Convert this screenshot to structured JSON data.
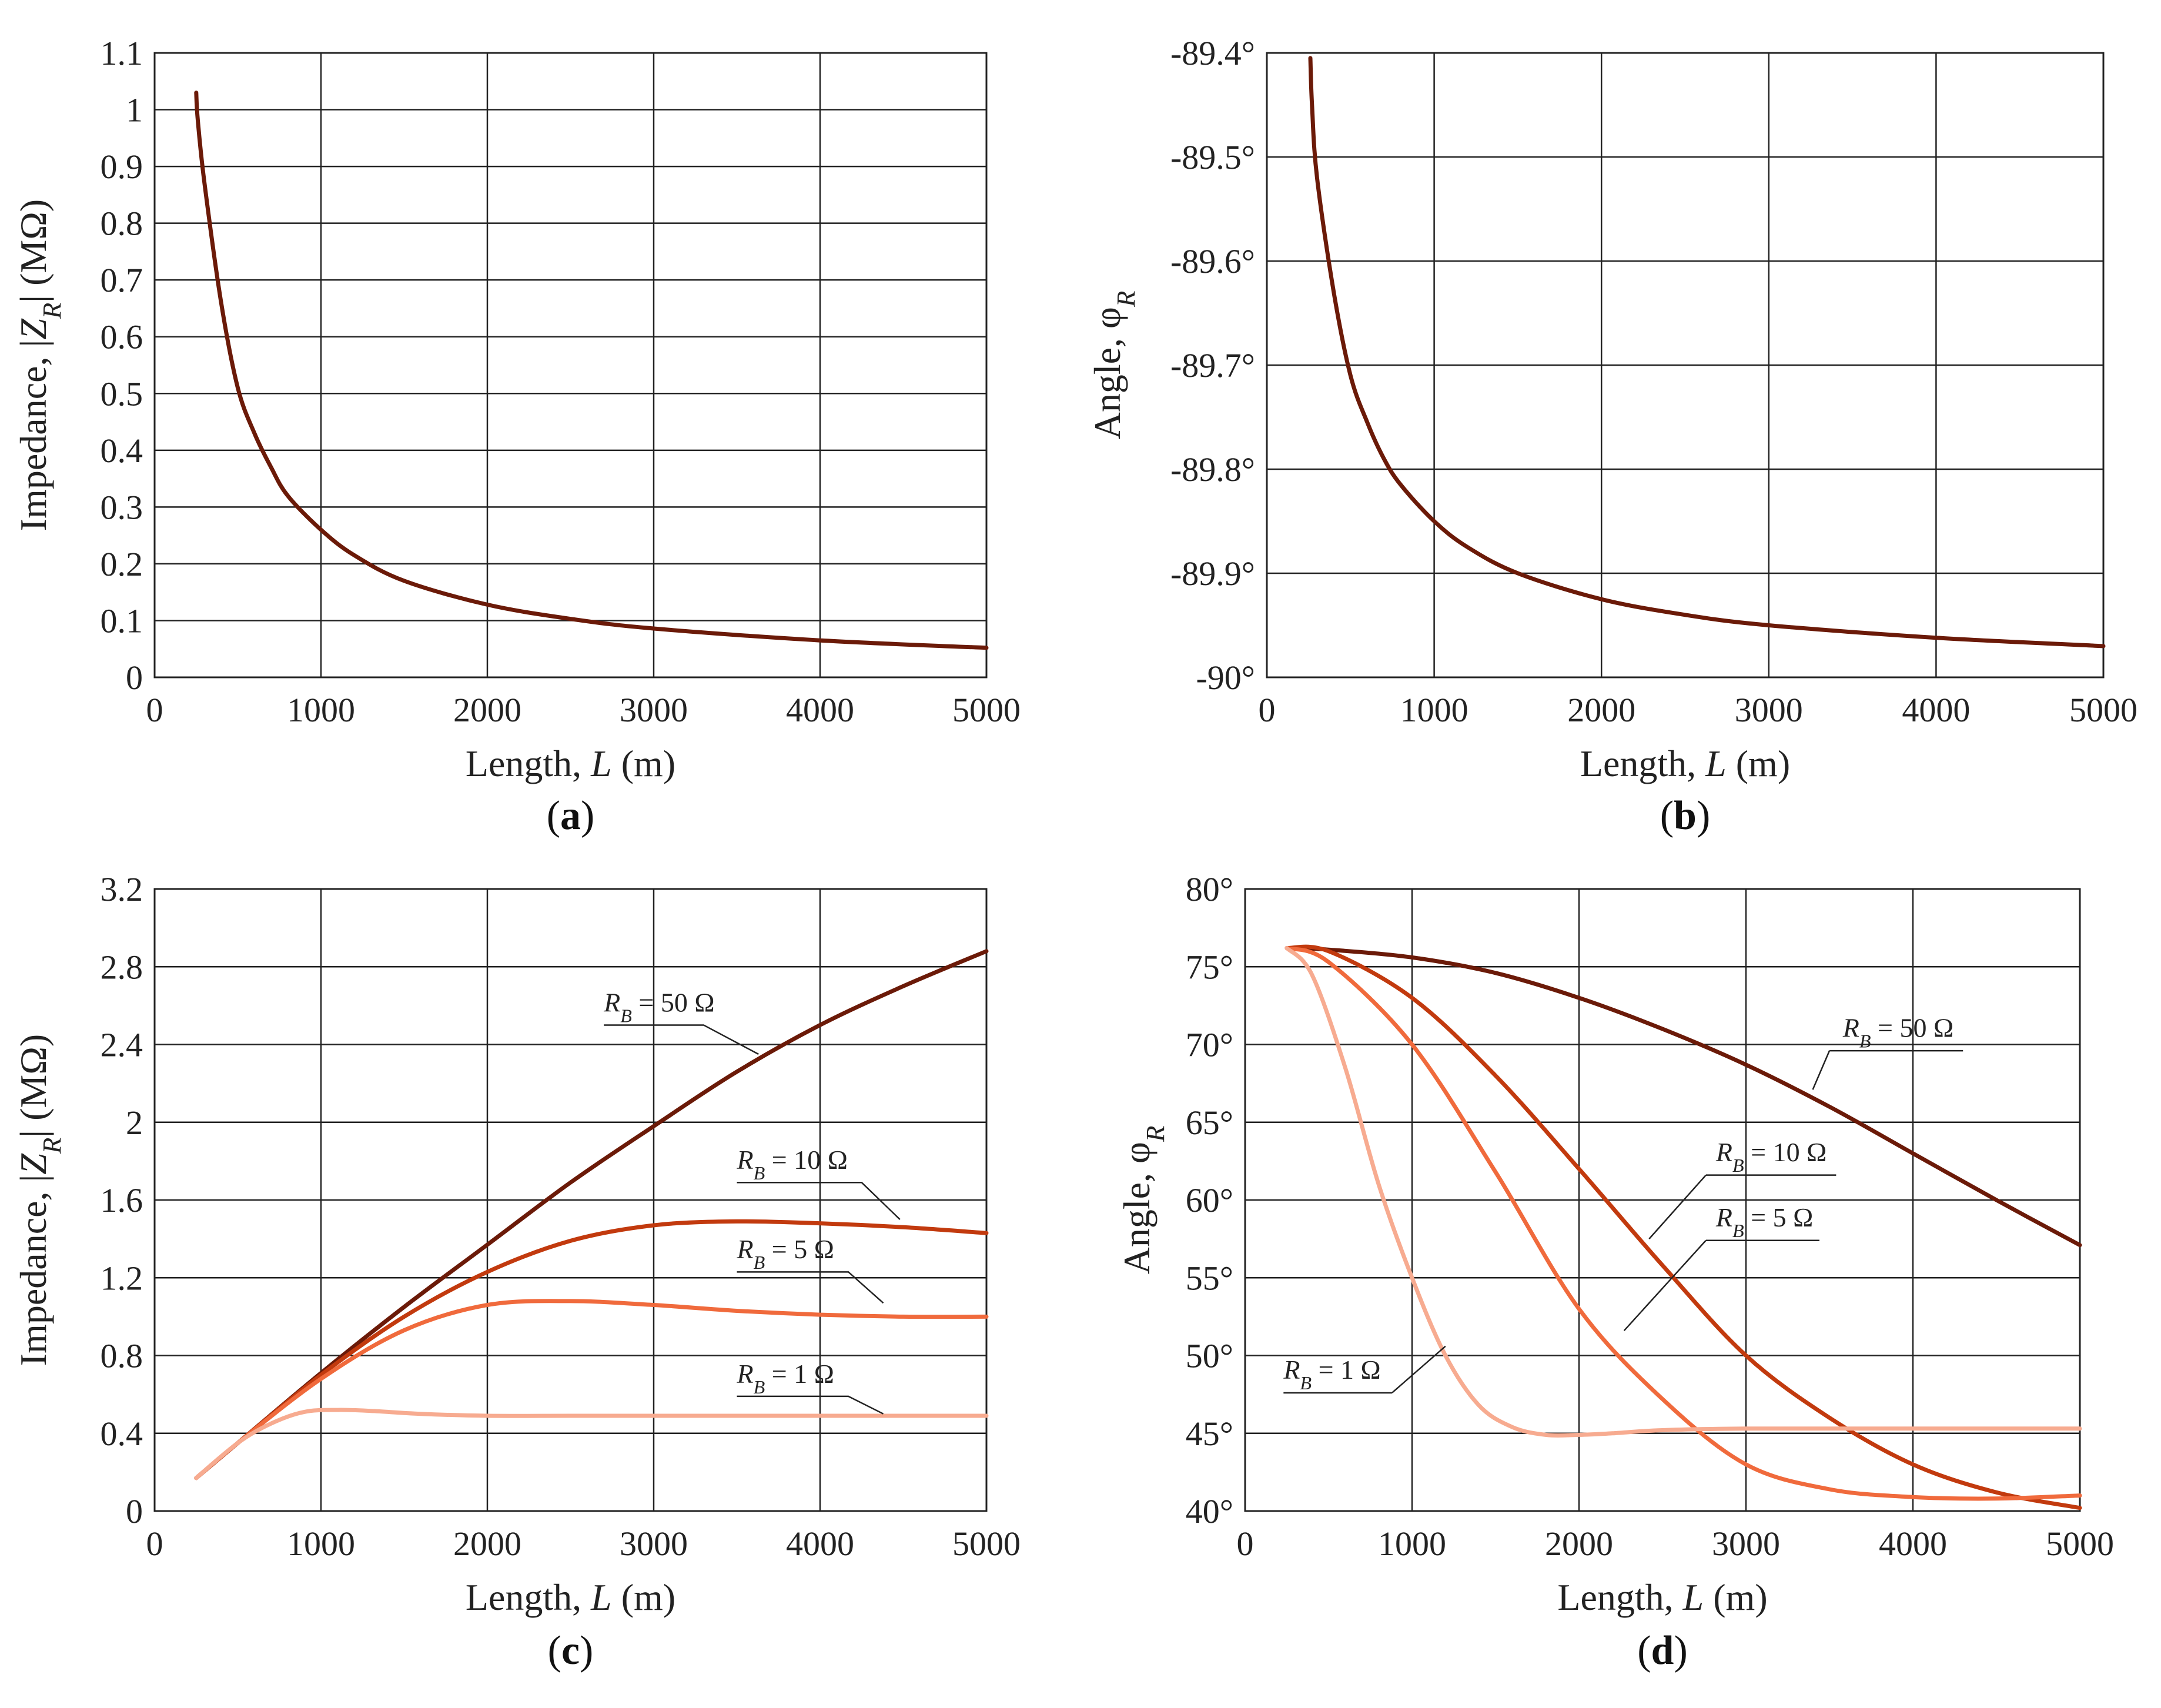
{
  "chart_data": [
    {
      "id": "a",
      "type": "line",
      "caption": "a",
      "xlabel": "Length, L (m)",
      "ylabel": "Impedance, |Z_R| (MΩ)",
      "xlim": [
        0,
        5000
      ],
      "ylim": [
        0,
        1.1
      ],
      "xticks": [
        0,
        1000,
        2000,
        3000,
        4000,
        5000
      ],
      "yticks": [
        0,
        0.1,
        0.2,
        0.3,
        0.4,
        0.5,
        0.6,
        0.7,
        0.8,
        0.9,
        1,
        1.1
      ],
      "ytick_labels": [
        "0",
        "0.1",
        "0.2",
        "0.3",
        "0.4",
        "0.5",
        "0.6",
        "0.7",
        "0.8",
        "0.9",
        "1",
        "1.1"
      ],
      "series": [
        {
          "name": "|Z_R|",
          "color": "#6b1a08",
          "x": [
            250,
            260,
            300,
            400,
            500,
            600,
            700,
            800,
            1000,
            1200,
            1500,
            2000,
            2500,
            3000,
            4000,
            5000
          ],
          "y": [
            1.03,
            0.98,
            0.87,
            0.66,
            0.51,
            0.43,
            0.37,
            0.32,
            0.26,
            0.215,
            0.17,
            0.128,
            0.103,
            0.086,
            0.065,
            0.052
          ]
        }
      ],
      "annotations": []
    },
    {
      "id": "b",
      "type": "line",
      "caption": "b",
      "xlabel": "Length, L (m)",
      "ylabel": "Angle, φ_R",
      "xlim": [
        0,
        5000
      ],
      "ylim": [
        -90,
        -89.4
      ],
      "xticks": [
        0,
        1000,
        2000,
        3000,
        4000,
        5000
      ],
      "yticks": [
        -90,
        -89.9,
        -89.8,
        -89.7,
        -89.6,
        -89.5,
        -89.4
      ],
      "ytick_labels": [
        "-90°",
        "-89.9°",
        "-89.8°",
        "-89.7°",
        "-89.6°",
        "-89.5°",
        "-89.4°"
      ],
      "series": [
        {
          "name": "φ_R",
          "color": "#6b1a08",
          "x": [
            260,
            270,
            300,
            400,
            500,
            600,
            700,
            800,
            1000,
            1200,
            1500,
            2000,
            2500,
            3000,
            4000,
            5000
          ],
          "y": [
            -89.405,
            -89.45,
            -89.52,
            -89.63,
            -89.71,
            -89.755,
            -89.79,
            -89.815,
            -89.85,
            -89.875,
            -89.9,
            -89.925,
            -89.94,
            -89.95,
            -89.962,
            -89.97
          ]
        }
      ],
      "annotations": []
    },
    {
      "id": "c",
      "type": "line",
      "caption": "c",
      "xlabel": "Length, L (m)",
      "ylabel": "Impedance, |Z_R| (MΩ)",
      "xlim": [
        0,
        5000
      ],
      "ylim": [
        0,
        3.2
      ],
      "xticks": [
        0,
        1000,
        2000,
        3000,
        4000,
        5000
      ],
      "yticks": [
        0,
        0.4,
        0.8,
        1.2,
        1.6,
        2,
        2.4,
        2.8,
        3.2
      ],
      "ytick_labels": [
        "0",
        "0.4",
        "0.8",
        "1.2",
        "1.6",
        "2",
        "2.4",
        "2.8",
        "3.2"
      ],
      "series": [
        {
          "name": "R_B = 50 Ω",
          "color": "#6b1a08",
          "x": [
            250,
            500,
            1000,
            1500,
            2000,
            2500,
            3000,
            3500,
            4000,
            4500,
            5000
          ],
          "y": [
            0.17,
            0.35,
            0.71,
            1.05,
            1.37,
            1.69,
            1.98,
            2.26,
            2.5,
            2.7,
            2.88
          ]
        },
        {
          "name": "R_B = 10 Ω",
          "color": "#c23a0e",
          "x": [
            250,
            500,
            1000,
            1500,
            2000,
            2500,
            3000,
            3500,
            4000,
            4500,
            5000
          ],
          "y": [
            0.17,
            0.35,
            0.7,
            1.0,
            1.23,
            1.39,
            1.47,
            1.49,
            1.48,
            1.46,
            1.43
          ]
        },
        {
          "name": "R_B = 5 Ω",
          "color": "#f06a3c",
          "x": [
            250,
            500,
            1000,
            1500,
            2000,
            2500,
            3000,
            3500,
            4000,
            4500,
            5000
          ],
          "y": [
            0.17,
            0.35,
            0.68,
            0.93,
            1.06,
            1.08,
            1.06,
            1.03,
            1.01,
            1.0,
            1.0
          ]
        },
        {
          "name": "R_B = 1 Ω",
          "color": "#f7ab90",
          "x": [
            250,
            500,
            700,
            900,
            1100,
            1300,
            1600,
            2000,
            2500,
            3000,
            4000,
            5000
          ],
          "y": [
            0.17,
            0.35,
            0.45,
            0.51,
            0.52,
            0.515,
            0.5,
            0.49,
            0.49,
            0.49,
            0.49,
            0.49
          ]
        }
      ],
      "annotations": [
        {
          "label": "R",
          "sub": "B",
          "value": " = 50 Ω",
          "series": 0,
          "text_x": 2700,
          "text_y": 2.57,
          "leader": [
            [
              2700,
              2.5
            ],
            [
              3300,
              2.5
            ],
            [
              3630,
              2.35
            ]
          ]
        },
        {
          "label": "R",
          "sub": "B",
          "value": " = 10 Ω",
          "series": 1,
          "text_x": 3500,
          "text_y": 1.76,
          "leader": [
            [
              3500,
              1.69
            ],
            [
              4250,
              1.69
            ],
            [
              4480,
              1.5
            ]
          ]
        },
        {
          "label": "R",
          "sub": "B",
          "value": " = 5 Ω",
          "series": 2,
          "text_x": 3500,
          "text_y": 1.3,
          "leader": [
            [
              3500,
              1.23
            ],
            [
              4170,
              1.23
            ],
            [
              4380,
              1.07
            ]
          ]
        },
        {
          "label": "R",
          "sub": "B",
          "value": " = 1 Ω",
          "series": 3,
          "text_x": 3500,
          "text_y": 0.66,
          "leader": [
            [
              3500,
              0.59
            ],
            [
              4170,
              0.59
            ],
            [
              4380,
              0.5
            ]
          ]
        }
      ]
    },
    {
      "id": "d",
      "type": "line",
      "caption": "d",
      "xlabel": "Length, L (m)",
      "ylabel": "Angle, φ_R",
      "xlim": [
        0,
        5000
      ],
      "ylim": [
        40,
        80
      ],
      "xticks": [
        0,
        1000,
        2000,
        3000,
        4000,
        5000
      ],
      "yticks": [
        40,
        45,
        50,
        55,
        60,
        65,
        70,
        75,
        80
      ],
      "ytick_labels": [
        "40°",
        "45°",
        "50°",
        "55°",
        "60°",
        "65°",
        "70°",
        "75°",
        "80°"
      ],
      "series": [
        {
          "name": "R_B = 50 Ω",
          "color": "#6b1a08",
          "x": [
            250,
            500,
            1000,
            1500,
            2000,
            2500,
            3000,
            3500,
            4000,
            4500,
            5000
          ],
          "y": [
            76.2,
            76.1,
            75.6,
            74.6,
            73.0,
            71.0,
            68.7,
            66.0,
            63.0,
            60.0,
            57.1
          ]
        },
        {
          "name": "R_B = 10 Ω",
          "color": "#c23a0e",
          "x": [
            250,
            500,
            1000,
            1500,
            2000,
            2500,
            3000,
            3500,
            4000,
            4500,
            5000
          ],
          "y": [
            76.2,
            76.0,
            73.0,
            68.0,
            62.0,
            55.8,
            50.0,
            46.0,
            43.0,
            41.2,
            40.2
          ]
        },
        {
          "name": "R_B = 5 Ω",
          "color": "#f06a3c",
          "x": [
            250,
            500,
            1000,
            1500,
            2000,
            2500,
            3000,
            3500,
            4000,
            4500,
            5000
          ],
          "y": [
            76.2,
            75.3,
            70.0,
            61.8,
            53.0,
            47.2,
            43.0,
            41.4,
            40.9,
            40.8,
            41.0
          ]
        },
        {
          "name": "R_B = 1 Ω",
          "color": "#f7ab90",
          "x": [
            250,
            400,
            600,
            800,
            1000,
            1200,
            1400,
            1600,
            1800,
            2000,
            2200,
            2500,
            3000,
            4000,
            5000
          ],
          "y": [
            76.2,
            74.5,
            68.5,
            61.0,
            55.0,
            50.0,
            46.8,
            45.4,
            44.9,
            44.9,
            45.0,
            45.2,
            45.3,
            45.3,
            45.3
          ]
        }
      ],
      "annotations": [
        {
          "label": "R",
          "sub": "B",
          "value": " = 50 Ω",
          "series": 0,
          "text_x": 3580,
          "text_y": 70.5,
          "leader": [
            [
              3500,
              69.6
            ],
            [
              4300,
              69.6
            ]
          ],
          "tail": [
            [
              3500,
              69.6
            ],
            [
              3400,
              67.1
            ]
          ]
        },
        {
          "label": "R",
          "sub": "B",
          "value": " = 10 Ω",
          "series": 1,
          "text_x": 2820,
          "text_y": 62.5,
          "leader": [
            [
              2760,
              61.6
            ],
            [
              3540,
              61.6
            ]
          ],
          "tail": [
            [
              2760,
              61.6
            ],
            [
              2420,
              57.5
            ]
          ]
        },
        {
          "label": "R",
          "sub": "B",
          "value": " = 5 Ω",
          "series": 2,
          "text_x": 2820,
          "text_y": 58.3,
          "leader": [
            [
              2760,
              57.4
            ],
            [
              3440,
              57.4
            ]
          ],
          "tail": [
            [
              2760,
              57.4
            ],
            [
              2270,
              51.6
            ]
          ]
        },
        {
          "label": "R",
          "sub": "B",
          "value": " = 1 Ω",
          "series": 3,
          "text_x": 230,
          "text_y": 48.5,
          "leader": [
            [
              230,
              47.6
            ],
            [
              880,
              47.6
            ]
          ],
          "tail": [
            [
              880,
              47.6
            ],
            [
              1200,
              50.6
            ]
          ]
        }
      ]
    }
  ]
}
